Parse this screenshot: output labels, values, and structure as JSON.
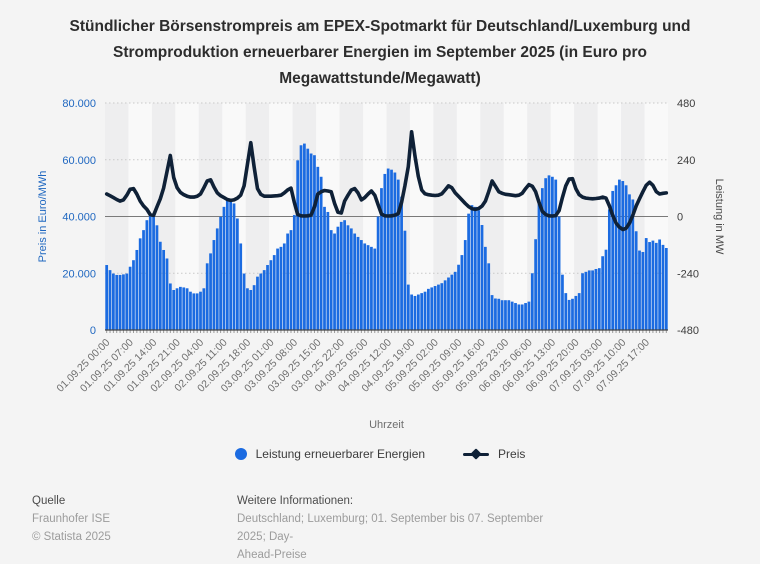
{
  "title": {
    "lines": [
      "Stündlicher Börsenstrompreis am EPEX-Spotmarkt für Deutschland/Luxemburg und",
      "Stromproduktion erneuerbarer Energien im September 2025 (in Euro pro",
      "Megawattstunde/Megawatt)"
    ]
  },
  "chart_data": {
    "type": "bar",
    "xlabel": "Uhrzeit",
    "x_tick_labels": [
      "01.09.25 00:00",
      "01.09.25 07:00",
      "01.09.25 14:00",
      "01.09.25 21:00",
      "02.09.25 04:00",
      "02.09.25 11:00",
      "02.09.25 18:00",
      "03.09.25 01:00",
      "03.09.25 08:00",
      "03.09.25 15:00",
      "03.09.25 22:00",
      "04.09.25 05:00",
      "04.09.25 12:00",
      "04.09.25 19:00",
      "05.09.25 02:00",
      "05.09.25 09:00",
      "05.09.25 16:00",
      "05.09.25 23:00",
      "06.09.25 06:00",
      "06.09.25 13:00",
      "06.09.25 20:00",
      "07.09.25 03:00",
      "07.09.25 10:00",
      "07.09.25 17:00"
    ],
    "hours_per_tick": 7,
    "left_axis": {
      "label": "Preis in Euro/MWh",
      "min": 0,
      "max": 80000,
      "tick_labels": [
        "0",
        "20.000",
        "40.000",
        "60.000",
        "80.000"
      ],
      "color": "#1f67c0"
    },
    "right_axis": {
      "label": "Leistung in MW",
      "min": -480,
      "max": 480,
      "tick_labels": [
        "-480",
        "-240",
        "0",
        "240",
        "480"
      ],
      "color": "#3c3c3c"
    },
    "series": [
      {
        "name": "Leistung erneuerbarer Energien",
        "type": "bar",
        "axis": "left",
        "color": "#1b6be1",
        "values": [
          22900,
          21100,
          19900,
          19400,
          19400,
          19600,
          19900,
          22300,
          24600,
          28200,
          32300,
          35200,
          38700,
          40500,
          39900,
          36900,
          31100,
          28200,
          25200,
          16400,
          14100,
          14700,
          15200,
          15000,
          14700,
          13500,
          12900,
          12900,
          13500,
          14700,
          23500,
          27000,
          31700,
          35800,
          39900,
          43400,
          45700,
          46300,
          44600,
          39300,
          30500,
          19900,
          14700,
          14100,
          15800,
          18800,
          19900,
          21100,
          22900,
          24600,
          26400,
          28700,
          29300,
          30500,
          34000,
          35200,
          40500,
          59800,
          65100,
          65700,
          63900,
          62200,
          61600,
          57500,
          54000,
          43400,
          41600,
          35200,
          34000,
          36400,
          38100,
          38700,
          36900,
          35800,
          34000,
          32800,
          31700,
          30500,
          29900,
          29300,
          28700,
          40000,
          50000,
          55000,
          56900,
          56500,
          55500,
          53000,
          47000,
          35000,
          16000,
          12500,
          12000,
          12500,
          13000,
          13500,
          14500,
          15000,
          15500,
          16000,
          16500,
          17500,
          18500,
          19500,
          20500,
          23000,
          26400,
          31700,
          41000,
          44000,
          43400,
          42200,
          37000,
          29300,
          23500,
          12300,
          11100,
          11000,
          10500,
          10500,
          10500,
          10000,
          9500,
          9000,
          9000,
          9500,
          10000,
          20000,
          32000,
          46000,
          50000,
          53500,
          54500,
          54000,
          53000,
          40000,
          19500,
          13000,
          10600,
          11000,
          12000,
          13000,
          20000,
          20500,
          21000,
          21000,
          21500,
          21800,
          26000,
          28300,
          42500,
          49000,
          51000,
          53000,
          52500,
          51000,
          47800,
          46000,
          34800,
          28000,
          27500,
          32400,
          31000,
          31500,
          30700,
          31900,
          30000,
          28900
        ]
      },
      {
        "name": "Preis",
        "type": "line",
        "axis": "right",
        "color": "#0f2137",
        "values": [
          95,
          88,
          80,
          72,
          65,
          70,
          90,
          115,
          118,
          95,
          65,
          45,
          30,
          8,
          5,
          40,
          75,
          120,
          190,
          258,
          165,
          122,
          102,
          92,
          86,
          82,
          82,
          86,
          95,
          122,
          150,
          155,
          125,
          100,
          88,
          80,
          72,
          68,
          70,
          78,
          90,
          130,
          220,
          312,
          210,
          118,
          94,
          86,
          86,
          86,
          87,
          88,
          90,
          100,
          112,
          120,
          60,
          8,
          3,
          2,
          3,
          6,
          40,
          95,
          105,
          110,
          108,
          105,
          55,
          18,
          15,
          65,
          90,
          112,
          118,
          100,
          70,
          80,
          95,
          108,
          90,
          50,
          10,
          3,
          2,
          3,
          6,
          12,
          60,
          130,
          211,
          358,
          255,
          170,
          112,
          96,
          92,
          90,
          89,
          90,
          96,
          112,
          130,
          122,
          100,
          85,
          70,
          55,
          42,
          33,
          30,
          34,
          44,
          65,
          105,
          150,
          128,
          105,
          98,
          94,
          92,
          90,
          88,
          90,
          98,
          118,
          135,
          128,
          105,
          60,
          22,
          8,
          3,
          2,
          4,
          25,
          80,
          130,
          158,
          160,
          118,
          92,
          82,
          78,
          76,
          75,
          76,
          78,
          82,
          78,
          45,
          5,
          -28,
          -45,
          -55,
          -50,
          -28,
          5,
          45,
          75,
          105,
          132,
          145,
          132,
          105,
          95,
          98,
          100
        ]
      }
    ],
    "grid": {
      "dotted_color": "#c9c9c9",
      "zero_line_color": "#7a7a7a",
      "axis_line_color": "#444444",
      "band_dark": "#eeeeef",
      "band_light": "#f9f9f9"
    }
  },
  "legend": {
    "items": [
      {
        "label": "Leistung erneuerbarer Energien",
        "marker_color": "#1b6be1"
      },
      {
        "label": "Preis",
        "marker_color": "#0f2137"
      }
    ]
  },
  "footer": {
    "source_heading": "Quelle",
    "source_name": "Fraunhofer ISE",
    "copyright": "© Statista 2025",
    "info_heading": "Weitere Informationen:",
    "info_lines": [
      "Deutschland; Luxemburg; 01. September bis 07. September 2025; Day-",
      "Ahead-Preise"
    ]
  }
}
